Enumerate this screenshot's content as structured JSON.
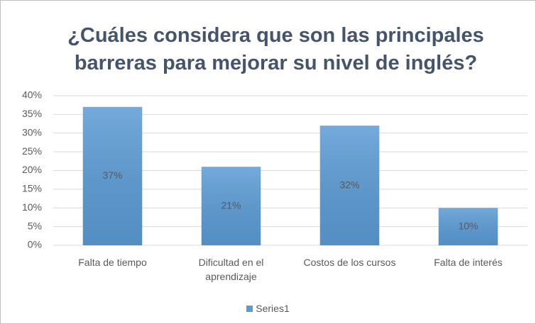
{
  "chart_data": {
    "type": "bar",
    "title": "¿Cuáles considera que son las principales barreras para mejorar su nivel de inglés?",
    "categories": [
      "Falta de tiempo",
      "Dificultad en el aprendizaje",
      "Costos de los cursos",
      "Falta de interés"
    ],
    "series": [
      {
        "name": "Series1",
        "color": "#5b9bd5",
        "values": [
          37,
          21,
          32,
          10
        ],
        "value_labels": [
          "37%",
          "21%",
          "32%",
          "10%"
        ]
      }
    ],
    "ylim": [
      0,
      40
    ],
    "yticks": [
      {
        "value": 0,
        "label": "0%"
      },
      {
        "value": 5,
        "label": "5%"
      },
      {
        "value": 10,
        "label": "10%"
      },
      {
        "value": 15,
        "label": "15%"
      },
      {
        "value": 20,
        "label": "20%"
      },
      {
        "value": 25,
        "label": "25%"
      },
      {
        "value": 30,
        "label": "30%"
      },
      {
        "value": 35,
        "label": "35%"
      },
      {
        "value": 40,
        "label": "40%"
      }
    ],
    "grid": true,
    "legend": "bottom"
  }
}
